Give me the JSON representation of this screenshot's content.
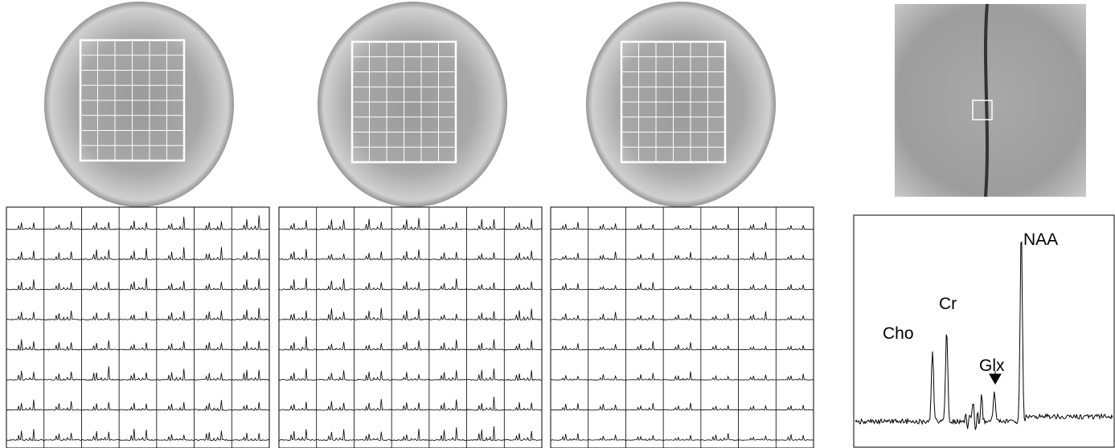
{
  "spectrum": {
    "peaks": [
      "Cho",
      "Cr",
      "Glx",
      "NAA"
    ]
  }
}
